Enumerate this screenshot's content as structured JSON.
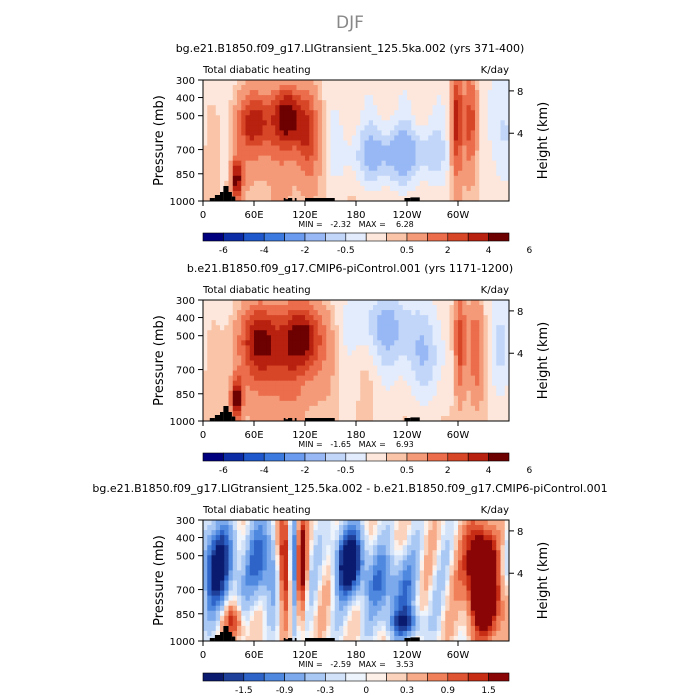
{
  "figure": {
    "season": "DJF"
  },
  "colors": {
    "heating_scale": [
      "#00007f",
      "#0c2ca6",
      "#1f58cc",
      "#3d7ae0",
      "#6a9bee",
      "#97b8f4",
      "#c2d6f9",
      "#e2ecfc",
      "#fde7dc",
      "#f9c4a8",
      "#f49a78",
      "#eb6d4b",
      "#d84628",
      "#b8200f",
      "#6d0000"
    ],
    "difference_scale": [
      "#0a1a6e",
      "#1e3f9a",
      "#2e64c8",
      "#4f88df",
      "#7ba9ec",
      "#a9c8f4",
      "#d2e2f9",
      "#eef4fc",
      "#fdf0e9",
      "#fbd3bd",
      "#f7ab88",
      "#ef8059",
      "#df5433",
      "#c72d15",
      "#8a0606"
    ],
    "topography": "#000000"
  },
  "chart_data": [
    {
      "type": "heatmap",
      "title": "bg.e21.B1850.f09_g17.LIGtransient_125.5ka.002 (yrs 371-400)",
      "left_string": "Total diabatic heating",
      "units": "K/day",
      "ylabel": "Pressure (mb)",
      "ylabel_right": "Height (km)",
      "y_ticks": [
        "300",
        "400",
        "500",
        "700",
        "850",
        "1000"
      ],
      "y_ticks_right": [
        "8",
        "4"
      ],
      "x_ticks": [
        "0",
        "60E",
        "120E",
        "180",
        "120W",
        "60W"
      ],
      "stats": "MIN =   -2.32   MAX =    6.28",
      "colorbar_labels": [
        "-6",
        "-4",
        "-2",
        "-0.5",
        "0.5",
        "2",
        "4",
        "6"
      ],
      "ylim": [
        1000,
        300
      ],
      "xlim": [
        0,
        360
      ],
      "grid": false
    },
    {
      "type": "heatmap",
      "title": "b.e21.B1850.f09_g17.CMIP6-piControl.001 (yrs 1171-1200)",
      "left_string": "Total diabatic heating",
      "units": "K/day",
      "ylabel": "Pressure (mb)",
      "ylabel_right": "Height (km)",
      "y_ticks": [
        "300",
        "400",
        "500",
        "700",
        "850",
        "1000"
      ],
      "y_ticks_right": [
        "8",
        "4"
      ],
      "x_ticks": [
        "0",
        "60E",
        "120E",
        "180",
        "120W",
        "60W"
      ],
      "stats": "MIN =   -1.65   MAX =    6.93",
      "colorbar_labels": [
        "-6",
        "-4",
        "-2",
        "-0.5",
        "0.5",
        "2",
        "4",
        "6"
      ],
      "ylim": [
        1000,
        300
      ],
      "xlim": [
        0,
        360
      ],
      "grid": false
    },
    {
      "type": "heatmap",
      "title": "bg.e21.B1850.f09_g17.LIGtransient_125.5ka.002 - b.e21.B1850.f09_g17.CMIP6-piControl.001",
      "left_string": "Total diabatic heating",
      "units": "K/day",
      "ylabel": "Pressure (mb)",
      "ylabel_right": "Height (km)",
      "y_ticks": [
        "300",
        "400",
        "500",
        "700",
        "850",
        "1000"
      ],
      "y_ticks_right": [
        "8",
        "4"
      ],
      "x_ticks": [
        "0",
        "60E",
        "120E",
        "180",
        "120W",
        "60W"
      ],
      "stats": "MIN =   -2.59   MAX =    3.53",
      "colorbar_labels": [
        "-1.5",
        "-0.9",
        "-0.3",
        "0",
        "0.3",
        "0.9",
        "1.5"
      ],
      "ylim": [
        1000,
        300
      ],
      "xlim": [
        0,
        360
      ],
      "grid": false
    }
  ]
}
